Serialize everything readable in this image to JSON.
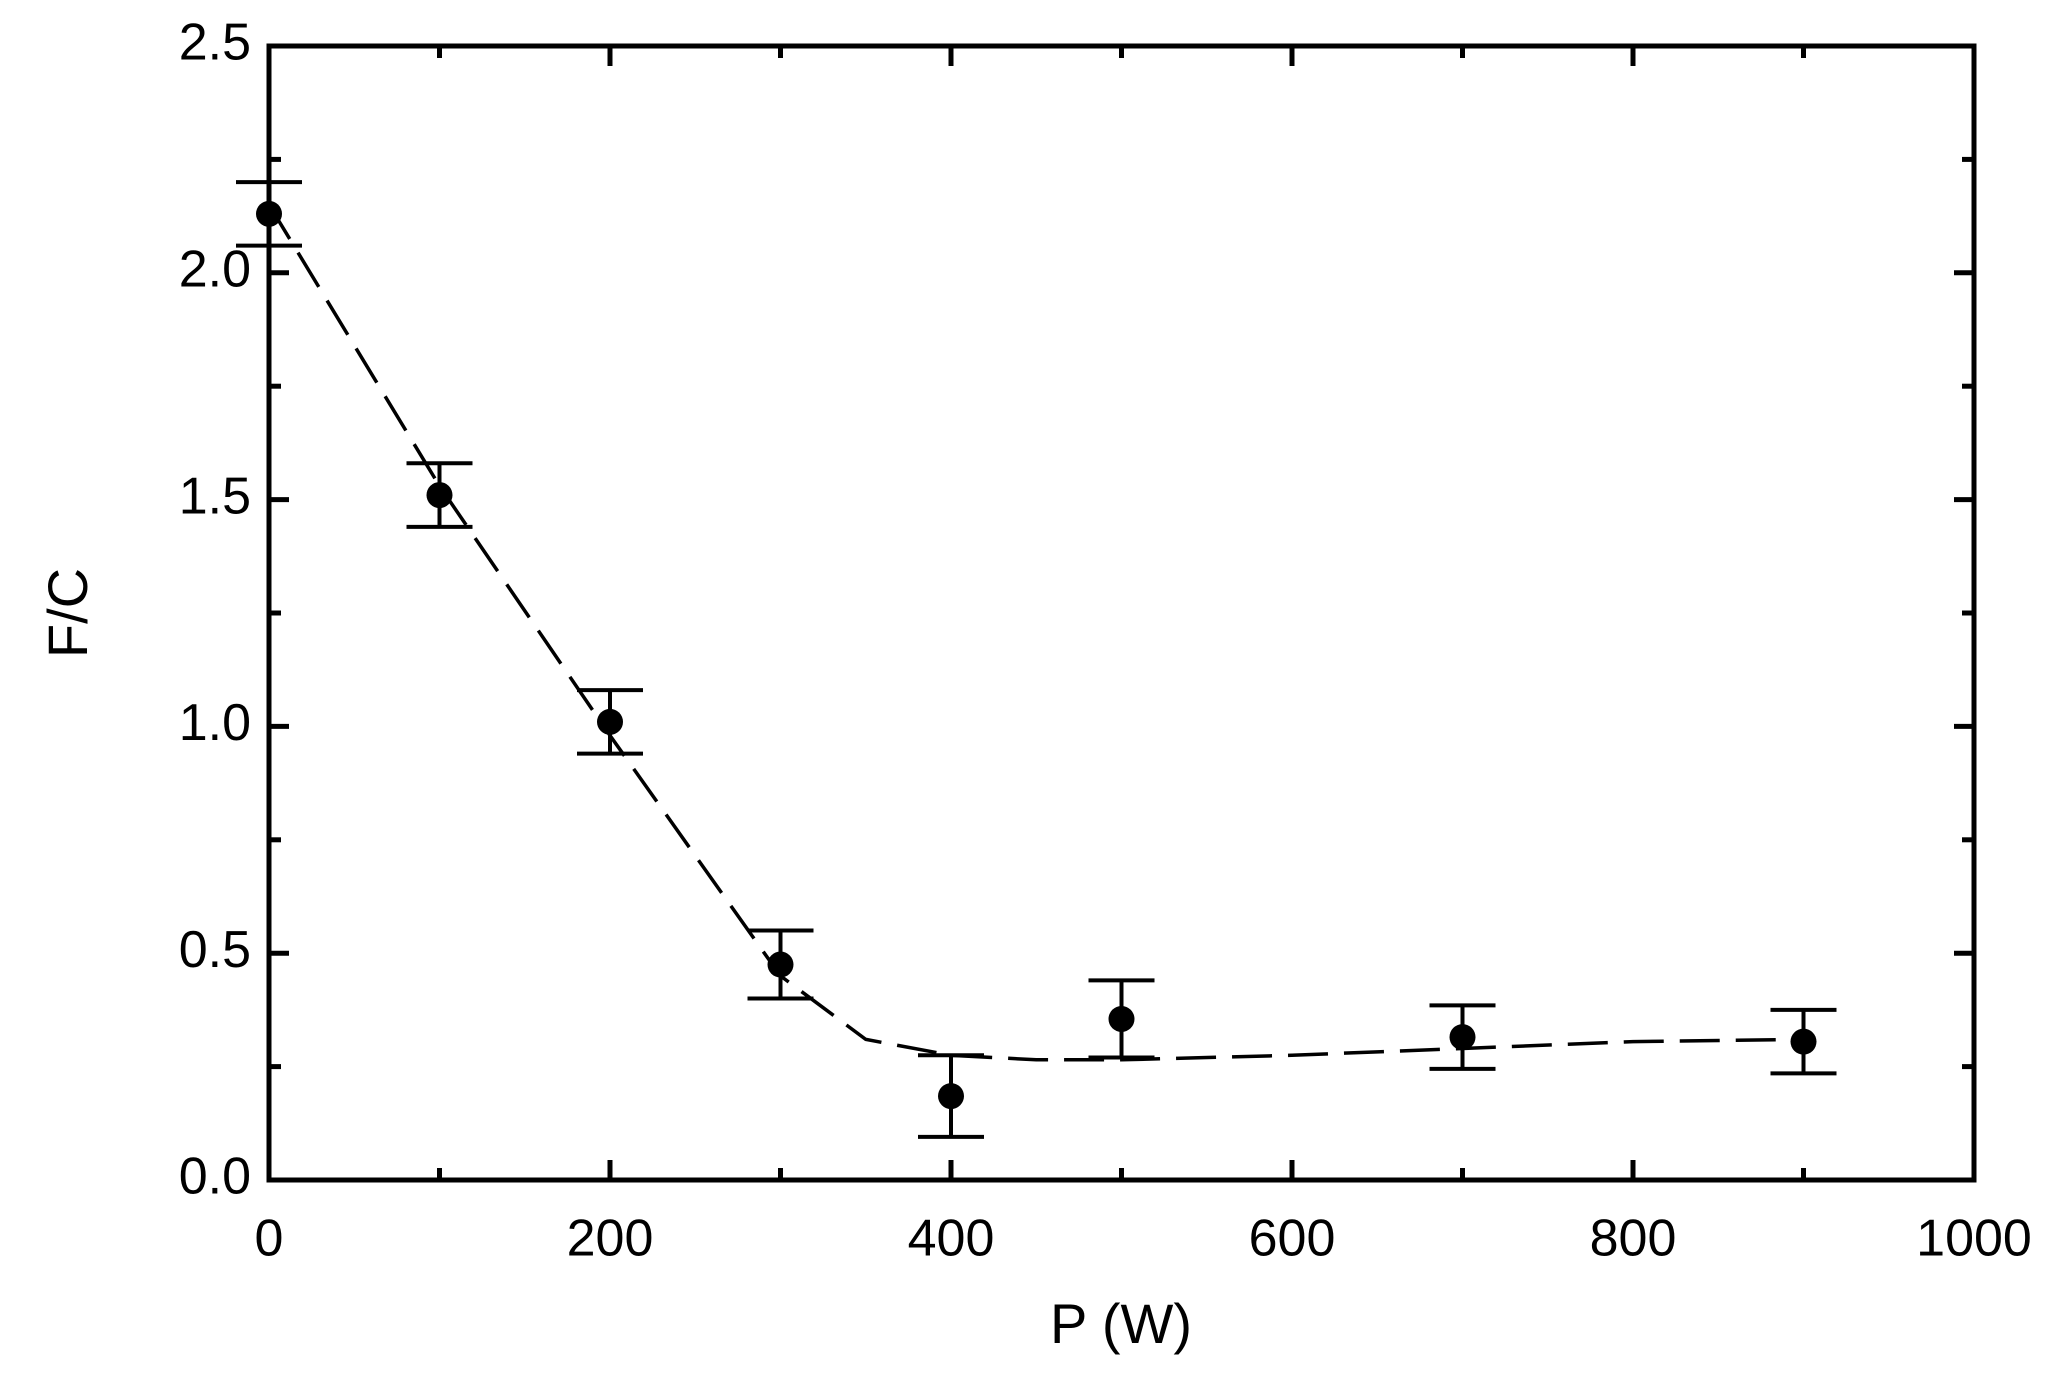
{
  "chart_data": {
    "type": "scatter",
    "xlabel": "P (W)",
    "ylabel": "F/C",
    "xlim": [
      0,
      1000
    ],
    "ylim": [
      0,
      2.5
    ],
    "xticks": [
      0,
      200,
      400,
      600,
      800,
      1000
    ],
    "xminorticks": [
      100,
      300,
      500,
      700,
      900
    ],
    "yticks": [
      {
        "value": 0,
        "label": "0.0"
      },
      0.5,
      {
        "value": 1,
        "label": "1.0"
      },
      1.5,
      {
        "value": 2,
        "label": "2.0"
      },
      2.5
    ],
    "yminorticks": [
      0.25,
      0.75,
      1.25,
      1.75,
      2.25
    ],
    "series": [
      {
        "color": "#000000",
        "marker": "circle",
        "x": [
          0,
          100,
          200,
          300,
          400,
          500,
          700,
          900
        ],
        "values": [
          2.13,
          1.51,
          1.01,
          0.475,
          0.185,
          0.355,
          0.315,
          0.305
        ],
        "errors": [
          0.07,
          0.07,
          0.07,
          0.075,
          0.09,
          0.085,
          0.07,
          0.07
        ]
      },
      {
        "color": "#000000",
        "line_style": "dashed",
        "x": [
          0,
          100,
          200,
          300,
          350,
          400,
          450,
          500,
          600,
          700,
          800,
          900
        ],
        "values": [
          2.15,
          1.53,
          0.98,
          0.45,
          0.31,
          0.275,
          0.265,
          0.265,
          0.275,
          0.29,
          0.305,
          0.31
        ]
      }
    ]
  }
}
